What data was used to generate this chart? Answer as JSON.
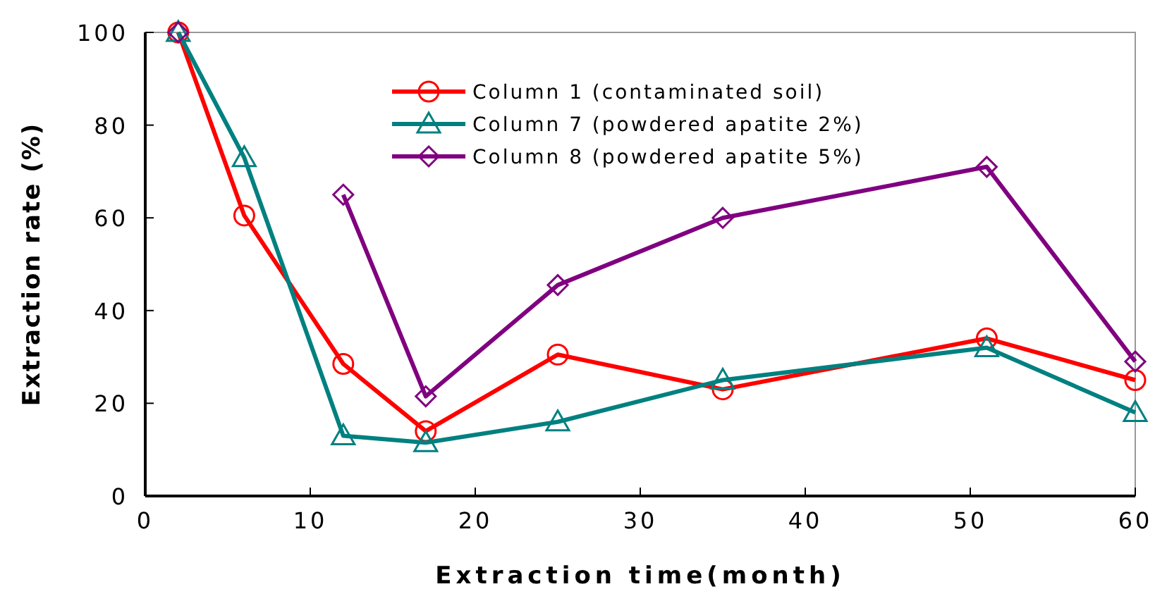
{
  "chart_data": {
    "type": "line",
    "xlabel": "Extraction time(month)",
    "ylabel": "Extraction rate (%)",
    "x": [
      2,
      6,
      12,
      17,
      25,
      35,
      51,
      60
    ],
    "xlim": [
      0,
      60
    ],
    "xticks": [
      0,
      10,
      20,
      30,
      40,
      50,
      60
    ],
    "ylim": [
      0,
      100
    ],
    "yticks": [
      0,
      20,
      40,
      60,
      80,
      100
    ],
    "grid": false,
    "legend": "top",
    "line_style": "solid",
    "series": [
      {
        "name": "Column 1 (contaminated soil)",
        "color": "#ff0000",
        "marker": "circle",
        "values": [
          100,
          60.5,
          28.5,
          14,
          30.5,
          23,
          34,
          25
        ]
      },
      {
        "name": "Column 7 (powdered apatite 2%)",
        "color": "#008080",
        "marker": "triangle",
        "values": [
          100,
          73,
          13,
          11.5,
          16,
          25,
          32,
          18
        ]
      },
      {
        "name": "Column 8 (powdered apatite 5%)",
        "color": "#800080",
        "marker": "diamond",
        "values": [
          100,
          null,
          65,
          21.5,
          45.5,
          60,
          71,
          29
        ]
      }
    ]
  }
}
